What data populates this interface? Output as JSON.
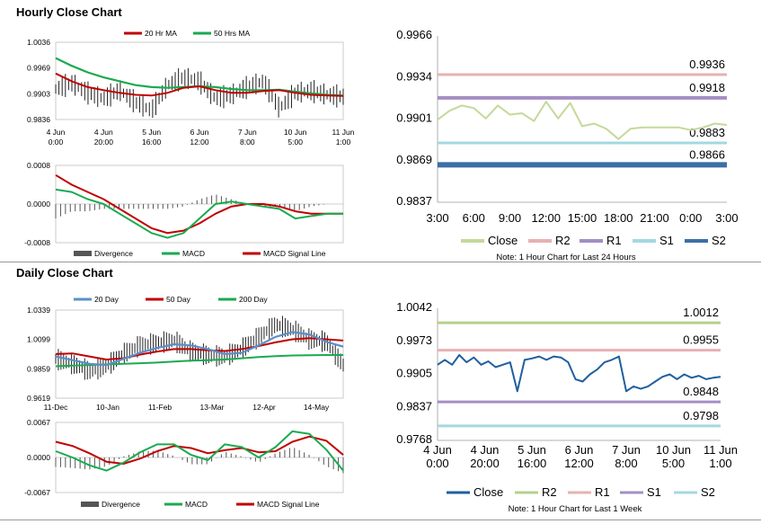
{
  "sections": {
    "hourly_title": "Hourly Close Chart",
    "daily_title": "Daily Close Chart"
  },
  "colors": {
    "ma_short": "#c00000",
    "ma_long": "#1aaa50",
    "ma_200": "#1aaa50",
    "ma_20_daily": "#5b8fc9",
    "close_line": "#1f5f9e",
    "r2": "#b5d08a",
    "r1": "#e6b2b2",
    "s1_purple": "#a48ec4",
    "s1_cyan": "#a3d8e2",
    "s2_hourly": "#3b6fa6",
    "close_hourly": "#c4d99a",
    "r2_hourly": "#e6b2b2",
    "r1_hourly": "#a48ec4",
    "s1_hourly": "#a3d8e2",
    "divergence": "#555555"
  },
  "chart_data": [
    {
      "id": "hourly_price",
      "type": "line",
      "legend": [
        "20 Hr MA",
        "50 Hrs MA"
      ],
      "legend_position": "top",
      "x_tick_labels": [
        [
          "4 Jun",
          "0:00"
        ],
        [
          "4 Jun",
          "20:00"
        ],
        [
          "5 Jun",
          "16:00"
        ],
        [
          "6 Jun",
          "12:00"
        ],
        [
          "7 Jun",
          "8:00"
        ],
        [
          "10 Jun",
          "5:00"
        ],
        [
          "11 Jun",
          "1:00"
        ]
      ],
      "y_tick_labels": [
        "1.0036",
        "0.9969",
        "0.9903",
        "0.9836"
      ],
      "ylim": [
        0.9836,
        1.0036
      ],
      "series": [
        {
          "name": "20 Hr MA",
          "values": [
            0.9955,
            0.9935,
            0.992,
            0.9912,
            0.9905,
            0.99,
            0.9898,
            0.9905,
            0.9918,
            0.9922,
            0.9912,
            0.9905,
            0.9905,
            0.991,
            0.9912,
            0.9905,
            0.99,
            0.9898,
            0.9897
          ]
        },
        {
          "name": "50 Hrs MA",
          "values": [
            0.9995,
            0.9975,
            0.9958,
            0.9945,
            0.9935,
            0.9925,
            0.992,
            0.9918,
            0.992,
            0.9922,
            0.992,
            0.9915,
            0.9912,
            0.9912,
            0.9913,
            0.9908,
            0.9904,
            0.99,
            0.9898
          ]
        },
        {
          "name": "Close",
          "values": [
            0.9915,
            0.993,
            0.9905,
            0.989,
            0.9912,
            0.988,
            0.986,
            0.9925,
            0.9945,
            0.9935,
            0.989,
            0.99,
            0.992,
            0.9935,
            0.9865,
            0.9905,
            0.991,
            0.99,
            0.9895
          ]
        }
      ]
    },
    {
      "id": "hourly_macd",
      "type": "line",
      "legend": [
        "Divergence",
        "MACD",
        "MACD Signal Line"
      ],
      "legend_position": "bottom",
      "y_tick_labels": [
        "0.0008",
        "0.0000",
        "-0.0008"
      ],
      "ylim": [
        -0.0008,
        0.0008
      ],
      "series": [
        {
          "name": "MACD",
          "values": [
            0.0003,
            0.00025,
            0.0001,
            0.0,
            -0.0002,
            -0.0004,
            -0.0006,
            -0.0007,
            -0.0006,
            -0.0003,
            0.0,
            5e-05,
            0.0,
            -5e-05,
            -0.0001,
            -0.0003,
            -0.00025,
            -0.0002,
            -0.0002
          ]
        },
        {
          "name": "MACD Signal Line",
          "values": [
            0.0006,
            0.0004,
            0.00025,
            0.0001,
            -0.0001,
            -0.0003,
            -0.0005,
            -0.0006,
            -0.00055,
            -0.0004,
            -0.0002,
            -5e-05,
            0.0,
            0.0,
            -5e-05,
            -0.00015,
            -0.0002,
            -0.0002,
            -0.0002
          ]
        },
        {
          "name": "Divergence",
          "values": [
            -0.0003,
            -0.00015,
            -0.00015,
            -0.0001,
            -0.0001,
            -0.0001,
            -0.0001,
            -0.0001,
            -5e-05,
            0.0001,
            0.0002,
            0.0001,
            0.0,
            -5e-05,
            -5e-05,
            -0.00015,
            -5e-05,
            0.0,
            0.0
          ]
        }
      ]
    },
    {
      "id": "hourly_pivot",
      "type": "line",
      "legend": [
        "Close",
        "R2",
        "R1",
        "S1",
        "S2"
      ],
      "legend_position": "bottom",
      "note": "Note: 1 Hour Chart for Last 24 Hours",
      "x_tick_labels": [
        "3:00",
        "6:00",
        "9:00",
        "12:00",
        "15:00",
        "18:00",
        "21:00",
        "0:00",
        "3:00"
      ],
      "y_tick_labels": [
        "0.9966",
        "0.9934",
        "0.9901",
        "0.9869",
        "0.9837"
      ],
      "ylim": [
        0.9837,
        0.9966
      ],
      "levels": [
        {
          "name": "R2",
          "value": 0.9936,
          "label": "0.9936"
        },
        {
          "name": "R1",
          "value": 0.9918,
          "label": "0.9918"
        },
        {
          "name": "S1",
          "value": 0.9883,
          "label": "0.9883"
        },
        {
          "name": "S2",
          "value": 0.9866,
          "label": "0.9866"
        }
      ],
      "series": [
        {
          "name": "Close",
          "values": [
            0.9901,
            0.9908,
            0.9912,
            0.991,
            0.9902,
            0.9912,
            0.9905,
            0.9906,
            0.99,
            0.9915,
            0.9902,
            0.9914,
            0.9896,
            0.9898,
            0.9894,
            0.9886,
            0.9894,
            0.9895,
            0.9895,
            0.9895,
            0.9895,
            0.9893,
            0.9895,
            0.9898,
            0.9897
          ]
        }
      ]
    },
    {
      "id": "daily_price",
      "type": "line",
      "legend": [
        "20 Day",
        "50 Day",
        "200 Day"
      ],
      "legend_position": "top",
      "x_tick_labels": [
        "11-Dec",
        "10-Jan",
        "11-Feb",
        "13-Mar",
        "12-Apr",
        "14-May"
      ],
      "y_tick_labels": [
        "1.0339",
        "1.0099",
        "0.9859",
        "0.9619"
      ],
      "ylim": [
        0.9619,
        1.0339
      ],
      "series": [
        {
          "name": "20 Day",
          "values": [
            0.996,
            0.993,
            0.99,
            0.989,
            0.994,
            0.999,
            1.003,
            1.006,
            1.005,
            1.002,
            0.998,
            0.999,
            1.005,
            1.012,
            1.016,
            1.014,
            1.008,
            1.004
          ]
        },
        {
          "name": "50 Day",
          "values": [
            0.998,
            0.9985,
            0.996,
            0.9935,
            0.9945,
            0.9975,
            1.0,
            1.002,
            1.002,
            1.001,
            1.0005,
            1.002,
            1.0045,
            1.0075,
            1.01,
            1.011,
            1.01,
            1.009
          ]
        },
        {
          "name": "200 Day",
          "values": [
            0.988,
            0.9885,
            0.989,
            0.9895,
            0.99,
            0.9905,
            0.991,
            0.9918,
            0.9925,
            0.993,
            0.9935,
            0.9945,
            0.9955,
            0.9962,
            0.9968,
            0.997,
            0.9972,
            0.9972
          ]
        },
        {
          "name": "Close",
          "values": [
            0.994,
            0.99,
            0.984,
            0.988,
            0.998,
            1.005,
            1.007,
            1.009,
            1.0,
            0.997,
            0.996,
            1.002,
            1.012,
            1.022,
            1.018,
            1.01,
            1.008,
            0.989
          ]
        }
      ]
    },
    {
      "id": "daily_macd",
      "type": "line",
      "legend": [
        "Divergence",
        "MACD",
        "MACD Signal Line"
      ],
      "legend_position": "bottom",
      "y_tick_labels": [
        "0.0067",
        "0.0000",
        "-0.0067"
      ],
      "ylim": [
        -0.0067,
        0.0067
      ],
      "series": [
        {
          "name": "MACD",
          "values": [
            0.0012,
            0.0,
            -0.0015,
            -0.0025,
            -0.001,
            0.001,
            0.0025,
            0.0025,
            0.0005,
            -0.0005,
            0.0025,
            0.002,
            0.0,
            0.002,
            0.005,
            0.0045,
            0.0015,
            -0.0025
          ]
        },
        {
          "name": "MACD Signal Line",
          "values": [
            0.003,
            0.0022,
            0.0008,
            -0.0008,
            -0.0012,
            -0.0002,
            0.0012,
            0.0022,
            0.0018,
            0.0008,
            0.0014,
            0.0018,
            0.001,
            0.0012,
            0.003,
            0.004,
            0.0032,
            0.0005
          ]
        },
        {
          "name": "Divergence",
          "values": [
            -0.0018,
            -0.002,
            -0.0023,
            -0.0017,
            0.0002,
            0.0012,
            0.0013,
            0.0003,
            -0.0013,
            -0.0013,
            0.0011,
            0.0002,
            -0.001,
            0.0008,
            0.002,
            0.0005,
            -0.0017,
            -0.003
          ]
        }
      ]
    },
    {
      "id": "weekly_pivot",
      "type": "line",
      "legend": [
        "Close",
        "R2",
        "R1",
        "S1",
        "S2"
      ],
      "legend_position": "bottom",
      "note": "Note: 1 Hour Chart for Last 1 Week",
      "x_tick_labels": [
        [
          "4 Jun",
          "0:00"
        ],
        [
          "4 Jun",
          "20:00"
        ],
        [
          "5 Jun",
          "16:00"
        ],
        [
          "6 Jun",
          "12:00"
        ],
        [
          "7 Jun",
          "8:00"
        ],
        [
          "10 Jun",
          "5:00"
        ],
        [
          "11 Jun",
          "1:00"
        ]
      ],
      "y_tick_labels": [
        "1.0042",
        "0.9973",
        "0.9905",
        "0.9837",
        "0.9768"
      ],
      "ylim": [
        0.9768,
        1.0042
      ],
      "levels": [
        {
          "name": "R2",
          "value": 1.0012,
          "label": "1.0012"
        },
        {
          "name": "R1",
          "value": 0.9955,
          "label": "0.9955"
        },
        {
          "name": "S1",
          "value": 0.9848,
          "label": "0.9848"
        },
        {
          "name": "S2",
          "value": 0.9798,
          "label": "0.9798"
        }
      ],
      "series": [
        {
          "name": "Close",
          "values": [
            0.9925,
            0.9935,
            0.9925,
            0.9945,
            0.993,
            0.994,
            0.9925,
            0.9932,
            0.992,
            0.9925,
            0.993,
            0.987,
            0.9935,
            0.9938,
            0.9942,
            0.9935,
            0.9942,
            0.994,
            0.993,
            0.9895,
            0.989,
            0.9905,
            0.9915,
            0.993,
            0.9935,
            0.9942,
            0.987,
            0.988,
            0.9875,
            0.988,
            0.989,
            0.99,
            0.9905,
            0.9895,
            0.9905,
            0.9898,
            0.9902,
            0.9895,
            0.9898,
            0.99
          ]
        }
      ]
    }
  ]
}
